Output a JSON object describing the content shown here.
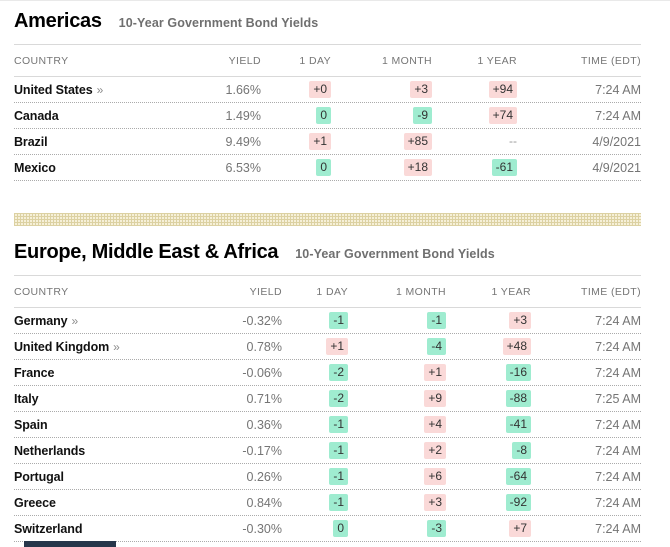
{
  "link_marker": "»",
  "colors": {
    "increase_badge_bg": "#fad9d8",
    "decrease_badge_bg": "#9fecd0",
    "divider_band": "#dcd1a2"
  },
  "sections": [
    {
      "title": "Americas",
      "subtitle": "10-Year Government Bond Yields",
      "columns": [
        "COUNTRY",
        "YIELD",
        "1 DAY",
        "1 MONTH",
        "1 YEAR",
        "TIME (EDT)"
      ],
      "rows": [
        {
          "country": "United States",
          "link": true,
          "yield": "1.66%",
          "day": "+0",
          "day_dir": "up",
          "month": "+3",
          "month_dir": "up",
          "year": "+94",
          "year_dir": "up",
          "time": "7:24 AM"
        },
        {
          "country": "Canada",
          "link": false,
          "yield": "1.49%",
          "day": "0",
          "day_dir": "down",
          "month": "-9",
          "month_dir": "down",
          "year": "+74",
          "year_dir": "up",
          "time": "7:24 AM"
        },
        {
          "country": "Brazil",
          "link": false,
          "yield": "9.49%",
          "day": "+1",
          "day_dir": "up",
          "month": "+85",
          "month_dir": "up",
          "year": "--",
          "year_dir": "none",
          "time": "4/9/2021"
        },
        {
          "country": "Mexico",
          "link": false,
          "yield": "6.53%",
          "day": "0",
          "day_dir": "down",
          "month": "+18",
          "month_dir": "up",
          "year": "-61",
          "year_dir": "down",
          "time": "4/9/2021"
        }
      ]
    },
    {
      "title": "Europe, Middle East & Africa",
      "subtitle": "10-Year Government Bond Yields",
      "columns": [
        "COUNTRY",
        "YIELD",
        "1 DAY",
        "1 MONTH",
        "1 YEAR",
        "TIME (EDT)"
      ],
      "rows": [
        {
          "country": "Germany",
          "link": true,
          "yield": "-0.32%",
          "day": "-1",
          "day_dir": "down",
          "month": "-1",
          "month_dir": "down",
          "year": "+3",
          "year_dir": "up",
          "time": "7:24 AM"
        },
        {
          "country": "United Kingdom",
          "link": true,
          "yield": "0.78%",
          "day": "+1",
          "day_dir": "up",
          "month": "-4",
          "month_dir": "down",
          "year": "+48",
          "year_dir": "up",
          "time": "7:24 AM"
        },
        {
          "country": "France",
          "link": false,
          "yield": "-0.06%",
          "day": "-2",
          "day_dir": "down",
          "month": "+1",
          "month_dir": "up",
          "year": "-16",
          "year_dir": "down",
          "time": "7:24 AM"
        },
        {
          "country": "Italy",
          "link": false,
          "yield": "0.71%",
          "day": "-2",
          "day_dir": "down",
          "month": "+9",
          "month_dir": "up",
          "year": "-88",
          "year_dir": "down",
          "time": "7:25 AM"
        },
        {
          "country": "Spain",
          "link": false,
          "yield": "0.36%",
          "day": "-1",
          "day_dir": "down",
          "month": "+4",
          "month_dir": "up",
          "year": "-41",
          "year_dir": "down",
          "time": "7:24 AM"
        },
        {
          "country": "Netherlands",
          "link": false,
          "yield": "-0.17%",
          "day": "-1",
          "day_dir": "down",
          "month": "+2",
          "month_dir": "up",
          "year": "-8",
          "year_dir": "down",
          "time": "7:24 AM"
        },
        {
          "country": "Portugal",
          "link": false,
          "yield": "0.26%",
          "day": "-1",
          "day_dir": "down",
          "month": "+6",
          "month_dir": "up",
          "year": "-64",
          "year_dir": "down",
          "time": "7:24 AM"
        },
        {
          "country": "Greece",
          "link": false,
          "yield": "0.84%",
          "day": "-1",
          "day_dir": "down",
          "month": "+3",
          "month_dir": "up",
          "year": "-92",
          "year_dir": "down",
          "time": "7:24 AM"
        },
        {
          "country": "Switzerland",
          "link": false,
          "yield": "-0.30%",
          "day": "0",
          "day_dir": "down",
          "month": "-3",
          "month_dir": "down",
          "year": "+7",
          "year_dir": "up",
          "time": "7:24 AM"
        }
      ]
    }
  ]
}
